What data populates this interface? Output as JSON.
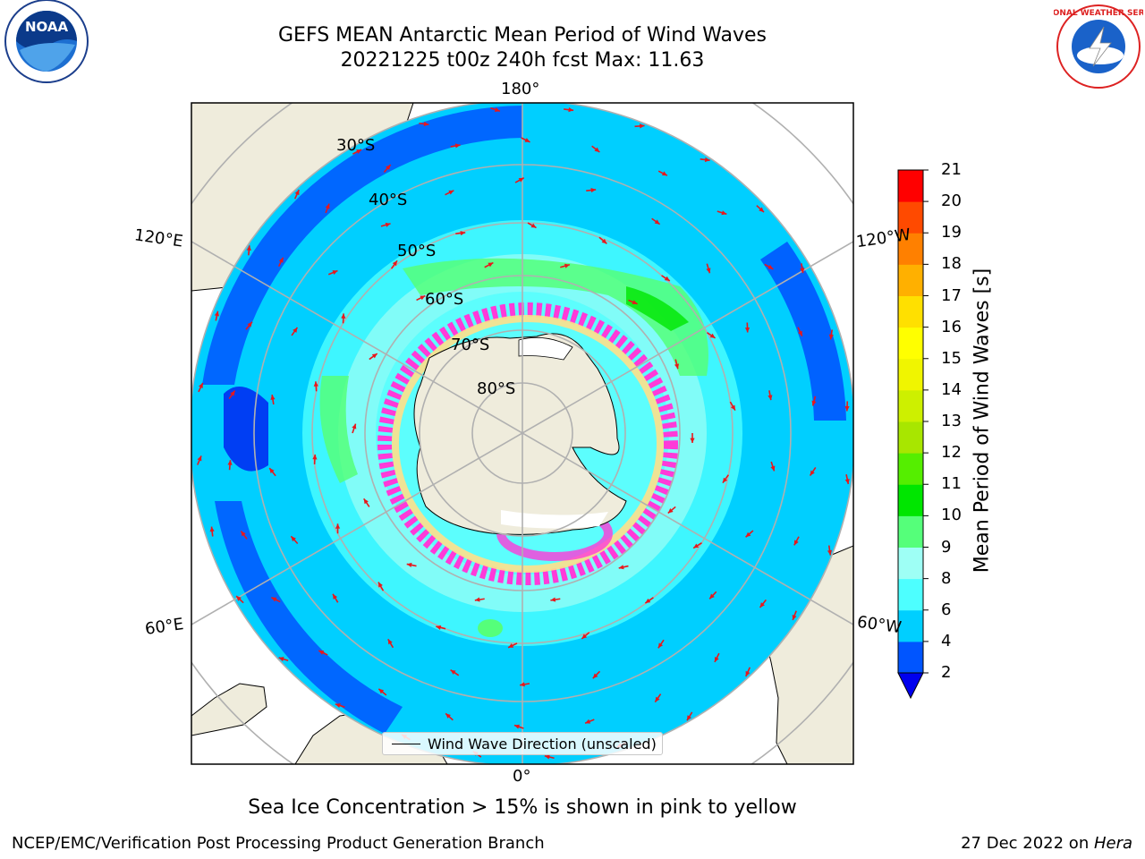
{
  "header": {
    "title_line1": "GEFS MEAN Antarctic Mean Period of Wind Waves",
    "title_line2": "20221225 t00z 240h fcst   Max: 11.63"
  },
  "map": {
    "projection": "south-polar-stereographic",
    "latitude_labels": [
      "30°S",
      "40°S",
      "50°S",
      "60°S",
      "70°S",
      "80°S"
    ],
    "longitude_labels": {
      "top": "180°",
      "bottom": "0°",
      "upper_left": "120°E",
      "lower_left": "60°E",
      "upper_right": "120°W",
      "lower_right": "60°W"
    },
    "legend_entry": "Wind Wave Direction (unscaled)",
    "colors": {
      "land": "#efecdc",
      "ice_pink": "#ff3ad8",
      "ice_yellow": "#ffe08a",
      "arrow": "#e8171b",
      "grid": "#b0b0b0"
    }
  },
  "colorbar": {
    "label": "Mean Period of Wind Waves [s]",
    "ticks": [
      "2",
      "4",
      "6",
      "8",
      "9",
      "10",
      "11",
      "12",
      "13",
      "14",
      "15",
      "16",
      "17",
      "18",
      "19",
      "20",
      "21"
    ],
    "colors": [
      "#0055ff",
      "#00cfff",
      "#4dffff",
      "#9efff5",
      "#55ff7a",
      "#00e600",
      "#55ee00",
      "#a8e600",
      "#cdf000",
      "#f0f500",
      "#ffff00",
      "#ffe000",
      "#ffb000",
      "#ff8000",
      "#ff4a00",
      "#ff0000"
    ],
    "extend_color": "#0000ee"
  },
  "note": "Sea Ice Concentration > 15% is shown in pink to yellow",
  "footer": {
    "left": "NCEP/EMC/Verification Post Processing Product Generation Branch",
    "right_date": "27 Dec 2022 on ",
    "right_machine": "Hera"
  },
  "logos": {
    "noaa_text": "NOAA",
    "nws_text": "NATIONAL WEATHER SERVICE"
  }
}
